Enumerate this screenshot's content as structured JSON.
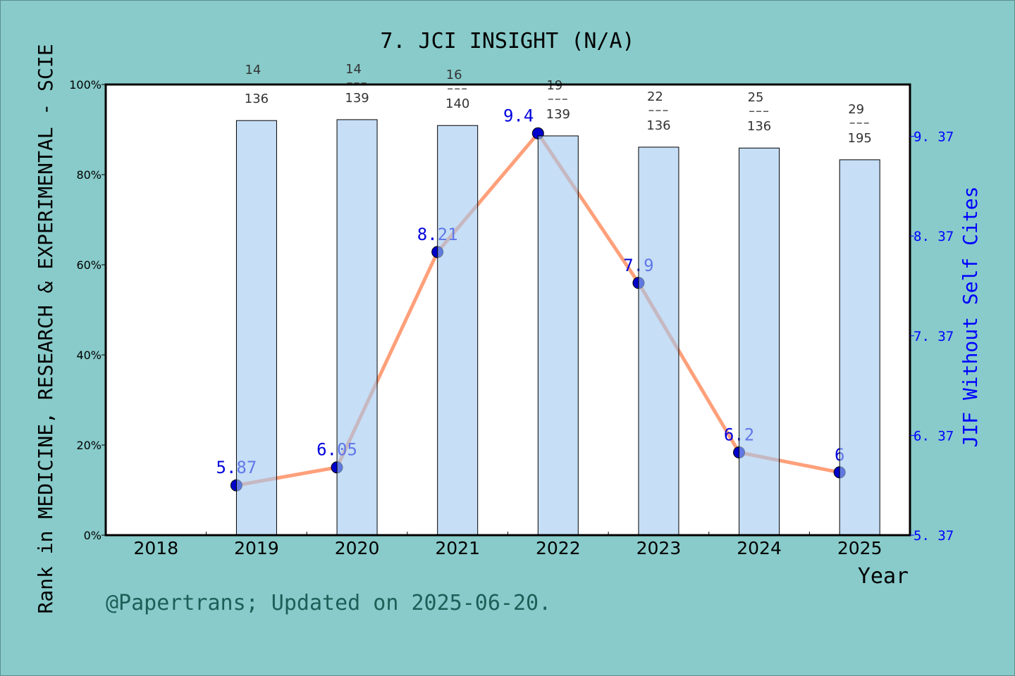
{
  "chart_data": {
    "type": "bar+line",
    "title": "7. JCI INSIGHT (N/A)",
    "xlabel": "Year",
    "ylabel_left": "Rank in MEDICINE, RESEARCH & EXPERIMENTAL - SCIE",
    "ylabel_right": "JIF Without Self Cites",
    "categories": [
      "2018",
      "2019",
      "2020",
      "2021",
      "2022",
      "2023",
      "2024",
      "2025"
    ],
    "left_axis": {
      "ylim": [
        0,
        100
      ],
      "ticks": [
        "0%",
        "20%",
        "40%",
        "60%",
        "80%",
        "100%"
      ]
    },
    "right_axis": {
      "ylim": [
        5.37,
        9.89
      ],
      "ticks": [
        "5.37",
        "6.37",
        "7.37",
        "8.37",
        "9.37"
      ],
      "color": "#0000ff"
    },
    "bars": {
      "name": "rank percentile",
      "values": [
        null,
        92.0,
        92.2,
        90.9,
        88.6,
        86.1,
        85.9,
        83.3
      ],
      "rank": [
        null,
        "14",
        "14",
        "16",
        "19",
        "22",
        "25",
        "29"
      ],
      "total": [
        null,
        "136",
        "139",
        "140",
        "139",
        "136",
        "136",
        "195"
      ],
      "color": "#c5e0f6"
    },
    "line": {
      "values": [
        null,
        5.87,
        6.05,
        8.21,
        9.4,
        7.9,
        6.2,
        6.0
      ],
      "labels": [
        null,
        "5.87",
        "6.05",
        "8.21",
        "9.4",
        "7.9",
        "6.2",
        "6"
      ],
      "color": "#ffa07a",
      "marker_color": "#0000cc"
    },
    "grid": false
  },
  "footer": {
    "credit": "@Papertrans; Updated on 2025-06-20."
  }
}
